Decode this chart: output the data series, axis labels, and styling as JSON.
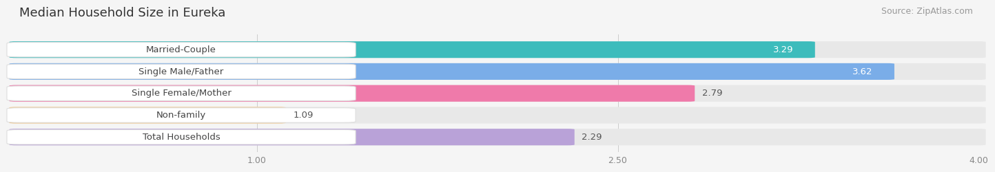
{
  "title": "Median Household Size in Eureka",
  "source": "Source: ZipAtlas.com",
  "categories": [
    "Married-Couple",
    "Single Male/Father",
    "Single Female/Mother",
    "Non-family",
    "Total Households"
  ],
  "values": [
    3.29,
    3.62,
    2.79,
    1.09,
    2.29
  ],
  "bar_colors": [
    "#3dbcbc",
    "#7aade8",
    "#ef7aaa",
    "#f5c98a",
    "#b9a2d8"
  ],
  "label_bg_color": "#ffffff",
  "xmin": 0.0,
  "xmax": 4.0,
  "xticks": [
    1.0,
    2.5,
    4.0
  ],
  "xtick_labels": [
    "1.00",
    "2.50",
    "4.00"
  ],
  "background_color": "#f5f5f5",
  "bar_bg_color": "#e8e8e8",
  "title_fontsize": 13,
  "source_fontsize": 9,
  "label_fontsize": 9.5,
  "value_fontsize": 9.5,
  "bar_height": 0.7,
  "bar_gap": 0.3
}
